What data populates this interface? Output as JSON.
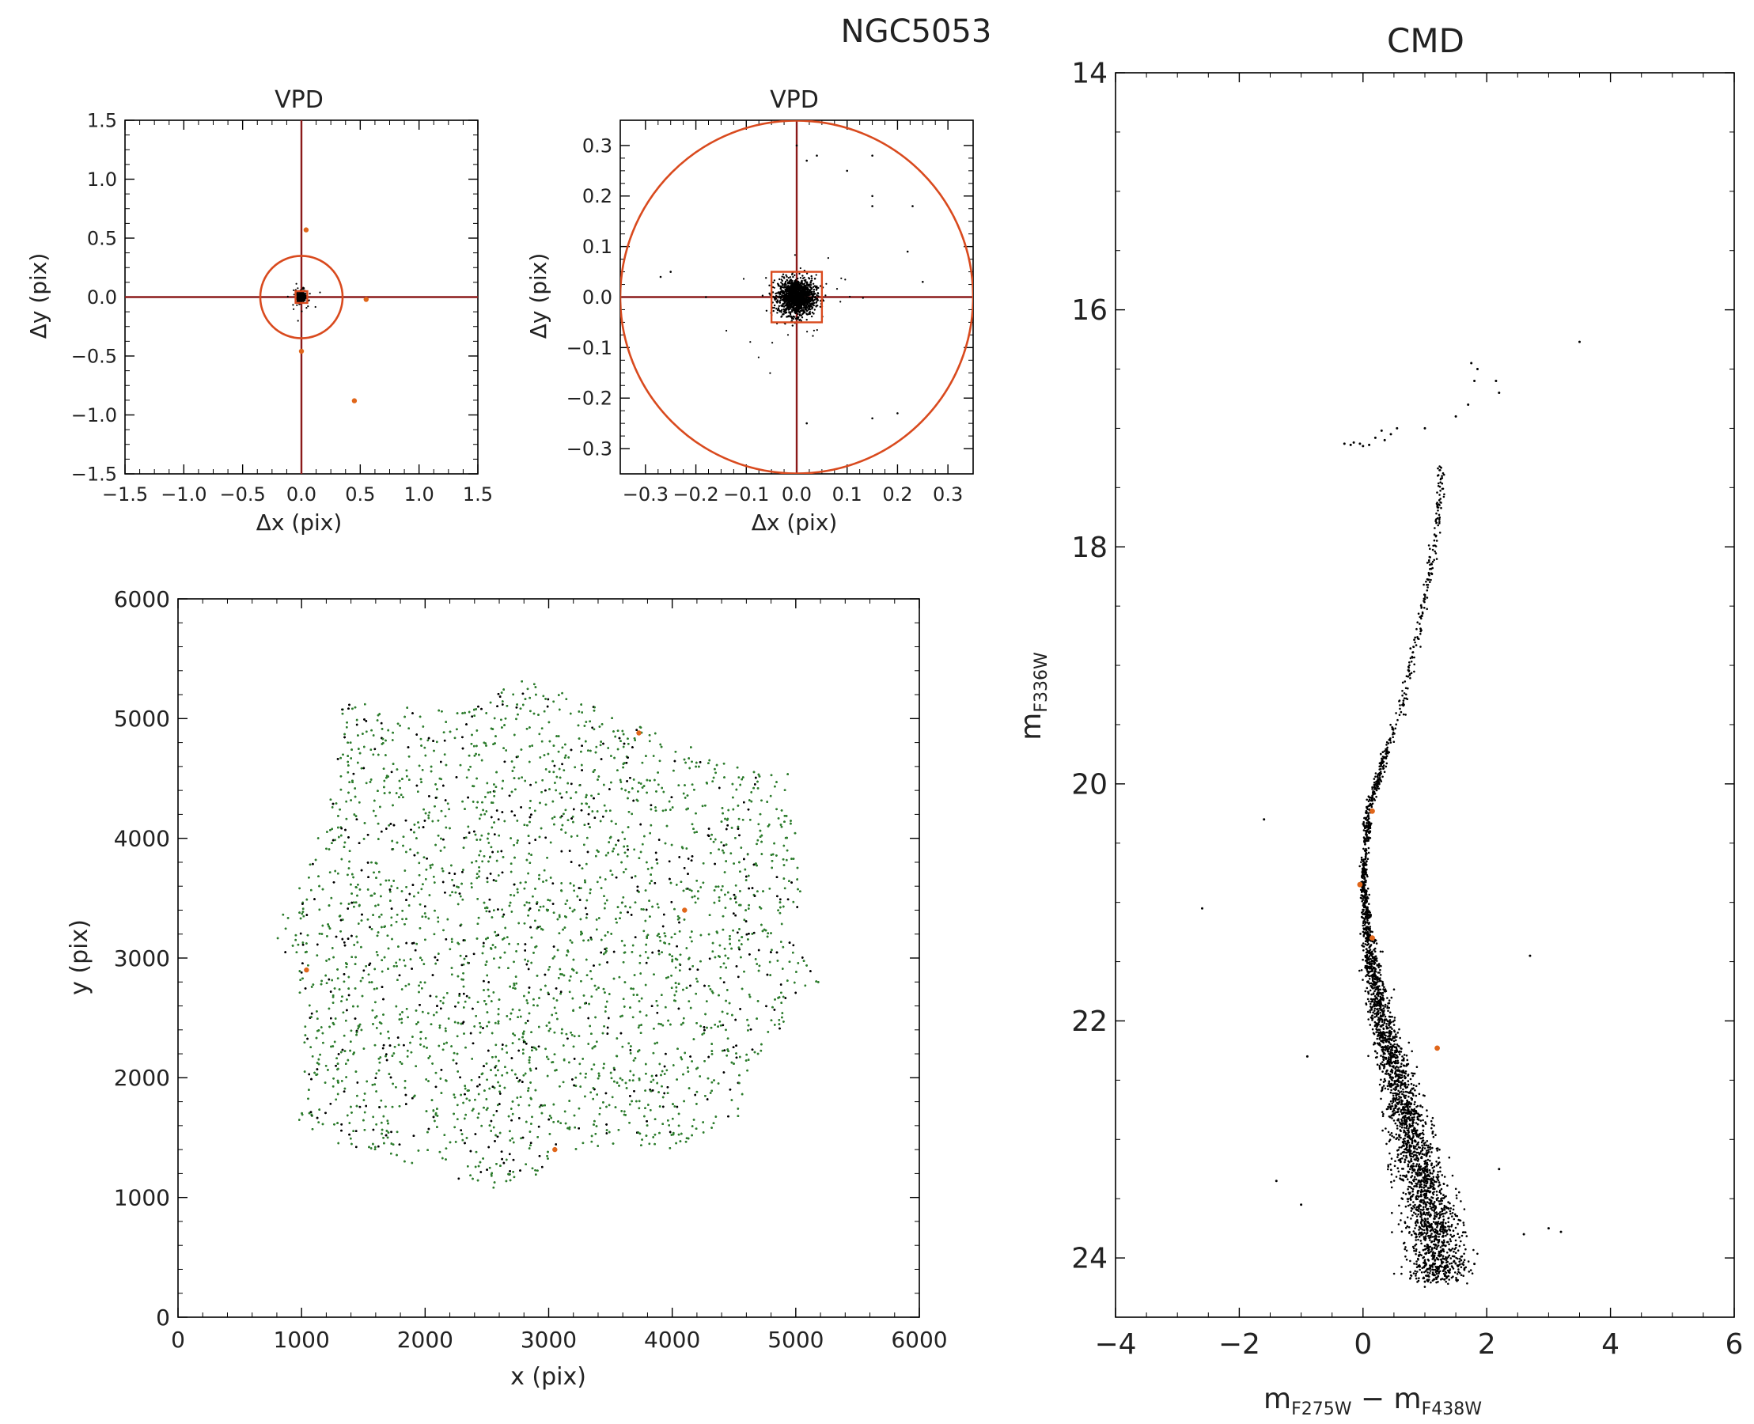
{
  "figure": {
    "title": "NGC5053"
  },
  "colors": {
    "axes": "#000000",
    "star": "#000000",
    "selected_star": "#2e7d2e",
    "highlight_star": "#e0661a",
    "circle": "#d94a1e",
    "crosshair": "#8b1a1a",
    "box": "#d94a1e"
  },
  "chart_data": [
    {
      "id": "vpd-wide",
      "type": "scatter",
      "title": "VPD",
      "xlabel": "Δx (pix)",
      "ylabel": "Δy (pix)",
      "xlim": [
        -1.5,
        1.5
      ],
      "ylim": [
        -1.5,
        1.5
      ],
      "xticks": [
        "−1.5",
        "−1.0",
        "−0.5",
        "0.0",
        "0.5",
        "1.0",
        "1.5"
      ],
      "xtick_values": [
        -1.5,
        -1.0,
        -0.5,
        0.0,
        0.5,
        1.0,
        1.5
      ],
      "yticks": [
        "−1.5",
        "−1.0",
        "−0.5",
        "0.0",
        "0.5",
        "1.0",
        "1.5"
      ],
      "ytick_values": [
        -1.5,
        -1.0,
        -0.5,
        0.0,
        0.5,
        1.0,
        1.5
      ],
      "selection_circle_radius": 0.35,
      "selection_box_half_width": 0.05,
      "highlighted_points": [
        [
          0.04,
          0.57
        ],
        [
          0.55,
          -0.02
        ],
        [
          0.45,
          -0.88
        ],
        [
          0.0,
          -0.46
        ]
      ],
      "grid": false
    },
    {
      "id": "vpd-zoom",
      "type": "scatter",
      "title": "VPD",
      "xlabel": "Δx (pix)",
      "ylabel": "Δy (pix)",
      "xlim": [
        -0.35,
        0.35
      ],
      "ylim": [
        -0.35,
        0.35
      ],
      "xticks": [
        "−0.3",
        "−0.2",
        "−0.1",
        "0.0",
        "0.1",
        "0.2",
        "0.3"
      ],
      "xtick_values": [
        -0.3,
        -0.2,
        -0.1,
        0.0,
        0.1,
        0.2,
        0.3
      ],
      "yticks": [
        "−0.3",
        "−0.2",
        "−0.1",
        "0.0",
        "0.1",
        "0.2",
        "0.3"
      ],
      "ytick_values": [
        -0.3,
        -0.2,
        -0.1,
        0.0,
        0.1,
        0.2,
        0.3
      ],
      "selection_circle_radius": 0.35,
      "selection_box_half_width": 0.05,
      "outlier_points": [
        [
          -0.25,
          0.05
        ],
        [
          -0.27,
          0.04
        ],
        [
          -0.18,
          0.0
        ],
        [
          0.0,
          0.3
        ],
        [
          0.02,
          0.27
        ],
        [
          0.04,
          0.28
        ],
        [
          0.1,
          0.25
        ],
        [
          0.15,
          0.28
        ],
        [
          0.15,
          0.18
        ],
        [
          0.15,
          0.2
        ],
        [
          0.23,
          0.18
        ],
        [
          0.22,
          0.09
        ],
        [
          0.15,
          -0.24
        ],
        [
          0.2,
          -0.23
        ],
        [
          0.02,
          -0.25
        ],
        [
          0.25,
          0.03
        ]
      ],
      "grid": false
    },
    {
      "id": "xy-field",
      "type": "scatter",
      "xlabel": "x (pix)",
      "ylabel": "y (pix)",
      "xlim": [
        0,
        6000
      ],
      "ylim": [
        0,
        6000
      ],
      "xticks": [
        "0",
        "1000",
        "2000",
        "3000",
        "4000",
        "5000",
        "6000"
      ],
      "xtick_values": [
        0,
        1000,
        2000,
        3000,
        4000,
        5000,
        6000
      ],
      "yticks": [
        "0",
        "1000",
        "2000",
        "3000",
        "4000",
        "5000",
        "6000"
      ],
      "ytick_values": [
        0,
        1000,
        2000,
        3000,
        4000,
        5000,
        6000
      ],
      "field_outline": [
        [
          1330,
          5150
        ],
        [
          1600,
          5110
        ],
        [
          2100,
          5080
        ],
        [
          2350,
          5050
        ],
        [
          2700,
          5350
        ],
        [
          3150,
          5200
        ],
        [
          3550,
          5020
        ],
        [
          3900,
          4870
        ],
        [
          4150,
          4780
        ],
        [
          4420,
          4650
        ],
        [
          4500,
          4620
        ],
        [
          4780,
          4520
        ],
        [
          4950,
          4600
        ],
        [
          4920,
          4380
        ],
        [
          5000,
          4050
        ],
        [
          5050,
          3700
        ],
        [
          5080,
          3400
        ],
        [
          5100,
          3300
        ],
        [
          4980,
          3200
        ],
        [
          5080,
          3000
        ],
        [
          5200,
          2800
        ],
        [
          5020,
          2700
        ],
        [
          4900,
          2450
        ],
        [
          4750,
          2200
        ],
        [
          4610,
          2000
        ],
        [
          4620,
          1850
        ],
        [
          4550,
          1650
        ],
        [
          4350,
          1500
        ],
        [
          4150,
          1400
        ],
        [
          3780,
          1400
        ],
        [
          3600,
          1450
        ],
        [
          3400,
          1400
        ],
        [
          3100,
          1350
        ],
        [
          2850,
          1150
        ],
        [
          2500,
          1050
        ],
        [
          2300,
          1100
        ],
        [
          2100,
          1230
        ],
        [
          1750,
          1320
        ],
        [
          1400,
          1400
        ],
        [
          1100,
          1550
        ],
        [
          950,
          1600
        ],
        [
          1050,
          1800
        ],
        [
          980,
          2200
        ],
        [
          1020,
          2500
        ],
        [
          950,
          2800
        ],
        [
          780,
          3200
        ],
        [
          870,
          3500
        ],
        [
          1100,
          3850
        ],
        [
          1150,
          4150
        ],
        [
          1250,
          4400
        ],
        [
          1300,
          4700
        ]
      ],
      "highlighted_points": [
        [
          1040,
          2900
        ],
        [
          3730,
          4880
        ],
        [
          4100,
          3400
        ],
        [
          3050,
          1400
        ]
      ],
      "grid": false
    },
    {
      "id": "cmd",
      "type": "scatter",
      "title": "CMD",
      "xlabel_main": "m",
      "xlabel_sub1": "F275W",
      "xlabel_mid": " − m",
      "xlabel_sub2": "F438W",
      "ylabel_main": "m",
      "ylabel_sub": "F336W",
      "xlim": [
        -4,
        6
      ],
      "ylim": [
        24.5,
        14
      ],
      "xticks": [
        "−4",
        "−2",
        "0",
        "2",
        "4",
        "6"
      ],
      "xtick_values": [
        -4,
        -2,
        0,
        2,
        4,
        6
      ],
      "yticks": [
        "14",
        "16",
        "18",
        "20",
        "22",
        "24"
      ],
      "ytick_values": [
        14,
        16,
        18,
        20,
        22,
        24
      ],
      "rgb_ridge": [
        [
          1.3,
          17.2
        ],
        [
          1.2,
          17.8
        ],
        [
          1.05,
          18.3
        ],
        [
          0.85,
          18.8
        ],
        [
          0.65,
          19.3
        ],
        [
          0.4,
          19.7
        ],
        [
          0.1,
          20.2
        ],
        [
          0.0,
          20.8
        ],
        [
          0.1,
          21.4
        ],
        [
          0.3,
          22.0
        ],
        [
          0.55,
          22.5
        ],
        [
          0.8,
          23.0
        ],
        [
          1.05,
          23.5
        ],
        [
          1.2,
          23.9
        ]
      ],
      "hb_points": [
        [
          -0.3,
          17.13
        ],
        [
          -0.2,
          17.14
        ],
        [
          -0.15,
          17.12
        ],
        [
          -0.05,
          17.13
        ],
        [
          0.0,
          17.15
        ],
        [
          0.1,
          17.14
        ],
        [
          0.2,
          17.08
        ],
        [
          0.3,
          17.02
        ],
        [
          0.35,
          17.1
        ],
        [
          0.45,
          17.05
        ],
        [
          0.55,
          17.0
        ],
        [
          1.0,
          17.0
        ],
        [
          1.5,
          16.9
        ],
        [
          1.7,
          16.8
        ],
        [
          1.8,
          16.6
        ],
        [
          1.75,
          16.45
        ],
        [
          2.15,
          16.6
        ],
        [
          2.2,
          16.7
        ],
        [
          3.5,
          16.27
        ],
        [
          1.85,
          16.5
        ]
      ],
      "field_points": [
        [
          -1.6,
          20.3
        ],
        [
          -2.6,
          21.05
        ],
        [
          -0.9,
          22.3
        ],
        [
          2.7,
          21.45
        ],
        [
          2.2,
          23.25
        ],
        [
          -1.4,
          23.35
        ],
        [
          -1.0,
          23.55
        ],
        [
          2.6,
          23.8
        ],
        [
          3.0,
          23.75
        ],
        [
          3.2,
          23.78
        ],
        [
          1.8,
          24.05
        ],
        [
          1.0,
          24.2
        ]
      ],
      "highlighted_points": [
        [
          0.15,
          20.23
        ],
        [
          -0.05,
          20.85
        ],
        [
          0.15,
          21.3
        ],
        [
          1.2,
          22.23
        ]
      ],
      "grid": false
    }
  ]
}
